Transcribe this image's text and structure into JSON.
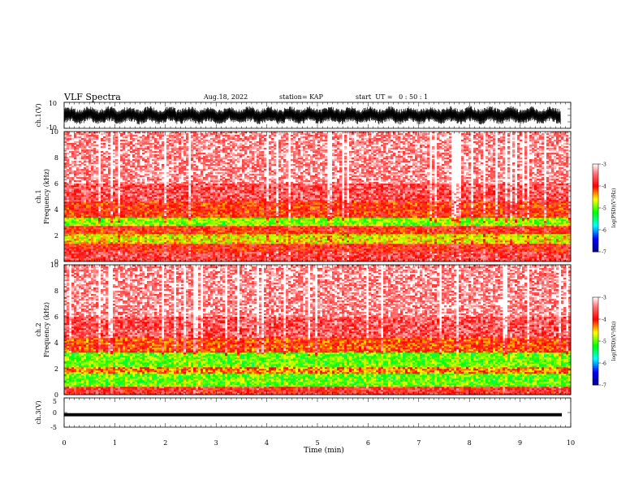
{
  "header": {
    "title": "VLF Spectra",
    "date": "Aug.18, 2022",
    "station": "station= KAP",
    "start": "start  UT =   0 : 50 : 1"
  },
  "chart_data": [
    {
      "type": "line",
      "panel": "ch1-waveform",
      "ylabel": "ch.1(V)",
      "ylim": [
        -10,
        10
      ],
      "ytick_labels": [
        "10",
        "-10"
      ],
      "xlim": [
        0,
        10
      ],
      "data_extent_min": [
        0,
        9.8
      ],
      "signal_range": [
        -6,
        6
      ]
    },
    {
      "type": "heatmap",
      "panel": "ch1-spectrogram",
      "ylabel": "ch.1\nFrequency (kHz)",
      "ylim": [
        0,
        10
      ],
      "ytick_labels": [
        "0",
        "2",
        "4",
        "6",
        "8",
        "10"
      ],
      "xlim": [
        0,
        10
      ],
      "colorbar": {
        "label": "log(PSD)(V²/Hz)",
        "range": [
          -7,
          -3
        ],
        "tick_labels": [
          "-3",
          "-4",
          "-5",
          "-6",
          "-7"
        ],
        "colors": [
          "#000080",
          "#0000ff",
          "#00ffff",
          "#00ff00",
          "#ffff00",
          "#ff0000",
          "#ffffff"
        ]
      },
      "bands_khz": [
        {
          "range": [
            0,
            0.8
          ],
          "logpsd": -3.7
        },
        {
          "range": [
            0.8,
            1.4
          ],
          "logpsd": -3.9
        },
        {
          "range": [
            1.4,
            2.1
          ],
          "logpsd": -4.6
        },
        {
          "range": [
            2.1,
            2.4
          ],
          "logpsd": -4.0
        },
        {
          "range": [
            2.4,
            2.8
          ],
          "logpsd": -3.9
        },
        {
          "range": [
            2.8,
            3.4
          ],
          "logpsd": -4.9
        },
        {
          "range": [
            3.4,
            4.6
          ],
          "logpsd": -4.0
        },
        {
          "range": [
            4.6,
            6.0
          ],
          "logpsd": -3.6
        },
        {
          "range": [
            6.0,
            10.0
          ],
          "logpsd": -3.3
        }
      ]
    },
    {
      "type": "heatmap",
      "panel": "ch2-spectrogram",
      "ylabel": "ch.2\nFrequency (kHz)",
      "ylim": [
        0,
        10
      ],
      "ytick_labels": [
        "0",
        "2",
        "4",
        "6",
        "8",
        "10"
      ],
      "xlim": [
        0,
        10
      ],
      "colorbar": {
        "label": "log(PSD)(V²/Hz)",
        "range": [
          -7,
          -3
        ],
        "tick_labels": [
          "-3",
          "-4",
          "-5",
          "-6",
          "-7"
        ],
        "colors": [
          "#000080",
          "#0000ff",
          "#00ffff",
          "#00ff00",
          "#ffff00",
          "#ff0000",
          "#ffffff"
        ]
      },
      "bands_khz": [
        {
          "range": [
            0,
            0.6
          ],
          "logpsd": -3.8
        },
        {
          "range": [
            0.6,
            1.6
          ],
          "logpsd": -5.0
        },
        {
          "range": [
            1.6,
            2.1
          ],
          "logpsd": -4.3
        },
        {
          "range": [
            2.1,
            3.2
          ],
          "logpsd": -5.0
        },
        {
          "range": [
            3.2,
            4.4
          ],
          "logpsd": -4.1
        },
        {
          "range": [
            4.4,
            6.0
          ],
          "logpsd": -3.6
        },
        {
          "range": [
            6.0,
            10.0
          ],
          "logpsd": -3.3
        }
      ]
    },
    {
      "type": "line",
      "panel": "ch3-waveform",
      "ylabel": "ch.3(V)",
      "ylim": [
        -5,
        5
      ],
      "ytick_labels": [
        "5",
        "0",
        "-5"
      ],
      "xlim": [
        0,
        10
      ],
      "signal_range": [
        -1.2,
        -0.3
      ],
      "xlabel": "Time (min)",
      "xtick_labels": [
        "0",
        "1",
        "2",
        "3",
        "4",
        "5",
        "6",
        "7",
        "8",
        "9",
        "10"
      ]
    }
  ]
}
